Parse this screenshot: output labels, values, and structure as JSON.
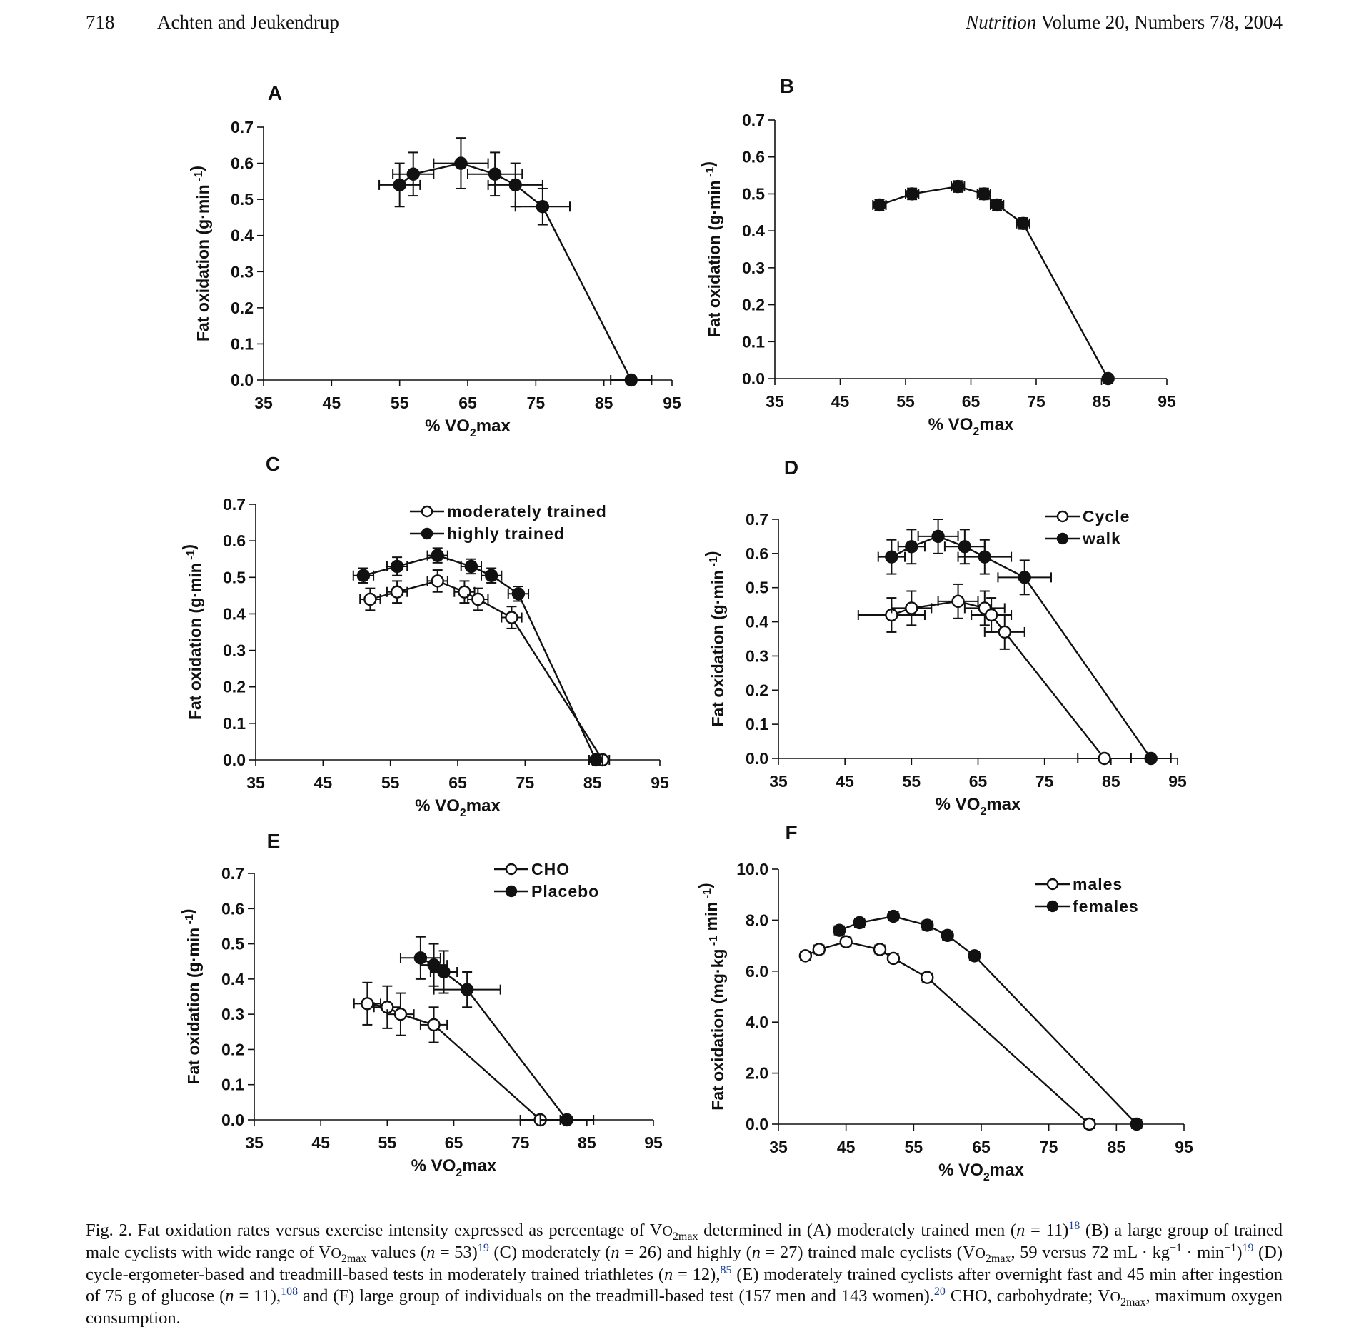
{
  "header": {
    "page_number": "718",
    "authors": "Achten and Jeukendrup",
    "journal": "Nutrition",
    "volume": "Volume 20, Numbers 7/8, 2004"
  },
  "chart_data": [
    {
      "id": "A",
      "letter": "A",
      "type": "line",
      "xlabel": "% VO2max",
      "ylabel": "Fat oxidation (g·min -1)",
      "xlim": [
        35,
        95
      ],
      "ylim": [
        0,
        0.7
      ],
      "xticks": [
        35,
        45,
        55,
        65,
        75,
        85,
        95
      ],
      "yticks": [
        "0.0",
        "0.1",
        "0.2",
        "0.3",
        "0.4",
        "0.5",
        "0.6",
        "0.7"
      ],
      "series": [
        {
          "filled": true,
          "points": [
            {
              "x": 55,
              "y": 0.54,
              "xe": 3,
              "ye": 0.06
            },
            {
              "x": 57,
              "y": 0.57,
              "xe": 3,
              "ye": 0.06
            },
            {
              "x": 64,
              "y": 0.6,
              "xe": 4,
              "ye": 0.07
            },
            {
              "x": 69,
              "y": 0.57,
              "xe": 4,
              "ye": 0.06
            },
            {
              "x": 72,
              "y": 0.54,
              "xe": 4,
              "ye": 0.06
            },
            {
              "x": 76,
              "y": 0.48,
              "xe": 4,
              "ye": 0.05
            },
            {
              "x": 89,
              "y": 0.0,
              "xe": 3,
              "ye": 0
            }
          ]
        }
      ]
    },
    {
      "id": "B",
      "letter": "B",
      "type": "line",
      "xlabel": "% VO2max",
      "ylabel": "Fat oxidation (g·min -1)",
      "xlim": [
        35,
        95
      ],
      "ylim": [
        0,
        0.7
      ],
      "xticks": [
        35,
        45,
        55,
        65,
        75,
        85,
        95
      ],
      "yticks": [
        "0.0",
        "0.1",
        "0.2",
        "0.3",
        "0.4",
        "0.5",
        "0.6",
        "0.7"
      ],
      "series": [
        {
          "filled": true,
          "points": [
            {
              "x": 51,
              "y": 0.47,
              "xe": 1,
              "ye": 0.015
            },
            {
              "x": 56,
              "y": 0.5,
              "xe": 1,
              "ye": 0.015
            },
            {
              "x": 63,
              "y": 0.52,
              "xe": 1,
              "ye": 0.015
            },
            {
              "x": 67,
              "y": 0.5,
              "xe": 1,
              "ye": 0.015
            },
            {
              "x": 69,
              "y": 0.47,
              "xe": 1,
              "ye": 0.015
            },
            {
              "x": 73,
              "y": 0.42,
              "xe": 1,
              "ye": 0.015
            },
            {
              "x": 86,
              "y": 0.0,
              "xe": 0.7,
              "ye": 0
            }
          ]
        }
      ]
    },
    {
      "id": "C",
      "letter": "C",
      "type": "line",
      "xlabel": "% VO2max",
      "ylabel": "Fat oxidation (g·min -1)",
      "xlim": [
        35,
        95
      ],
      "ylim": [
        0,
        0.7
      ],
      "xticks": [
        35,
        45,
        55,
        65,
        75,
        85,
        95
      ],
      "yticks": [
        "0.0",
        "0.1",
        "0.2",
        "0.3",
        "0.4",
        "0.5",
        "0.6",
        "0.7"
      ],
      "legend": "top-right",
      "series": [
        {
          "name": "moderately trained",
          "filled": false,
          "points": [
            {
              "x": 52,
              "y": 0.44,
              "xe": 1.5,
              "ye": 0.03
            },
            {
              "x": 56,
              "y": 0.46,
              "xe": 1.5,
              "ye": 0.03
            },
            {
              "x": 62,
              "y": 0.49,
              "xe": 1.5,
              "ye": 0.03
            },
            {
              "x": 66,
              "y": 0.46,
              "xe": 1.5,
              "ye": 0.03
            },
            {
              "x": 68,
              "y": 0.44,
              "xe": 1.5,
              "ye": 0.03
            },
            {
              "x": 73,
              "y": 0.39,
              "xe": 1.5,
              "ye": 0.03
            },
            {
              "x": 86.5,
              "y": 0.0,
              "xe": 1,
              "ye": 0
            }
          ]
        },
        {
          "name": "highly trained",
          "filled": true,
          "points": [
            {
              "x": 51,
              "y": 0.505,
              "xe": 1.5,
              "ye": 0.02
            },
            {
              "x": 56,
              "y": 0.53,
              "xe": 1.5,
              "ye": 0.025
            },
            {
              "x": 62,
              "y": 0.56,
              "xe": 1.5,
              "ye": 0.02
            },
            {
              "x": 67,
              "y": 0.53,
              "xe": 1.5,
              "ye": 0.02
            },
            {
              "x": 70,
              "y": 0.505,
              "xe": 1.5,
              "ye": 0.02
            },
            {
              "x": 74,
              "y": 0.455,
              "xe": 1.5,
              "ye": 0.02
            },
            {
              "x": 85.5,
              "y": 0.0,
              "xe": 1,
              "ye": 0
            }
          ]
        }
      ]
    },
    {
      "id": "D",
      "letter": "D",
      "type": "line",
      "xlabel": "% VO2max",
      "ylabel": "Fat oxidation (g·min -1)",
      "xlim": [
        35,
        95
      ],
      "ylim": [
        0,
        0.7
      ],
      "xticks": [
        35,
        45,
        55,
        65,
        75,
        85,
        95
      ],
      "yticks": [
        "0.0",
        "0.1",
        "0.2",
        "0.3",
        "0.4",
        "0.5",
        "0.6",
        "0.7"
      ],
      "legend": "top-right",
      "series": [
        {
          "name": "Cycle",
          "filled": false,
          "points": [
            {
              "x": 52,
              "y": 0.42,
              "xe": 5,
              "ye": 0.05
            },
            {
              "x": 55,
              "y": 0.44,
              "xe": 3,
              "ye": 0.05
            },
            {
              "x": 62,
              "y": 0.46,
              "xe": 3,
              "ye": 0.05
            },
            {
              "x": 66,
              "y": 0.44,
              "xe": 3,
              "ye": 0.05
            },
            {
              "x": 67,
              "y": 0.42,
              "xe": 3,
              "ye": 0.05
            },
            {
              "x": 69,
              "y": 0.37,
              "xe": 3,
              "ye": 0.05
            },
            {
              "x": 84,
              "y": 0.0,
              "xe": 4,
              "ye": 0
            }
          ]
        },
        {
          "name": "walk",
          "filled": true,
          "points": [
            {
              "x": 52,
              "y": 0.59,
              "xe": 2,
              "ye": 0.05
            },
            {
              "x": 55,
              "y": 0.62,
              "xe": 2,
              "ye": 0.05
            },
            {
              "x": 59,
              "y": 0.65,
              "xe": 3,
              "ye": 0.05
            },
            {
              "x": 63,
              "y": 0.62,
              "xe": 3,
              "ye": 0.05
            },
            {
              "x": 66,
              "y": 0.59,
              "xe": 4,
              "ye": 0.05
            },
            {
              "x": 72,
              "y": 0.53,
              "xe": 4,
              "ye": 0.05
            },
            {
              "x": 91,
              "y": 0.0,
              "xe": 3,
              "ye": 0
            }
          ]
        }
      ]
    },
    {
      "id": "E",
      "letter": "E",
      "type": "line",
      "xlabel": "% VO2max",
      "ylabel": "Fat oxidation (g·min -1)",
      "xlim": [
        35,
        95
      ],
      "ylim": [
        0,
        0.7
      ],
      "xticks": [
        35,
        45,
        55,
        65,
        75,
        85,
        95
      ],
      "yticks": [
        "0.0",
        "0.1",
        "0.2",
        "0.3",
        "0.4",
        "0.5",
        "0.6",
        "0.7"
      ],
      "legend": "top-right",
      "series": [
        {
          "name": "CHO",
          "filled": false,
          "points": [
            {
              "x": 52,
              "y": 0.33,
              "xe": 2,
              "ye": 0.06
            },
            {
              "x": 55,
              "y": 0.32,
              "xe": 2,
              "ye": 0.06
            },
            {
              "x": 57,
              "y": 0.3,
              "xe": 2,
              "ye": 0.06
            },
            {
              "x": 62,
              "y": 0.27,
              "xe": 2,
              "ye": 0.05
            },
            {
              "x": 78,
              "y": 0.0,
              "xe": 3,
              "ye": 0
            }
          ]
        },
        {
          "name": "Placebo",
          "filled": true,
          "points": [
            {
              "x": 60,
              "y": 0.46,
              "xe": 3,
              "ye": 0.06
            },
            {
              "x": 62,
              "y": 0.44,
              "xe": 2,
              "ye": 0.06
            },
            {
              "x": 63.5,
              "y": 0.42,
              "xe": 2,
              "ye": 0.06
            },
            {
              "x": 67,
              "y": 0.37,
              "xe": 5,
              "ye": 0.05
            },
            {
              "x": 82,
              "y": 0.0,
              "xe": 4,
              "ye": 0
            }
          ]
        }
      ]
    },
    {
      "id": "F",
      "letter": "F",
      "type": "line",
      "xlabel": "% VO2max",
      "ylabel": "Fat oxidation (mg·kg -1 min -1)",
      "xlim": [
        35,
        95
      ],
      "ylim": [
        0,
        10
      ],
      "xticks": [
        35,
        45,
        55,
        65,
        75,
        85,
        95
      ],
      "yticks": [
        "0.0",
        "2.0",
        "4.0",
        "6.0",
        "8.0",
        "10.0"
      ],
      "legend": "top-right",
      "series": [
        {
          "name": "males",
          "filled": false,
          "points": [
            {
              "x": 39,
              "y": 6.6,
              "xe": 0.7,
              "ye": 0.15
            },
            {
              "x": 41,
              "y": 6.85,
              "xe": 0.7,
              "ye": 0.15
            },
            {
              "x": 45,
              "y": 7.15,
              "xe": 0.7,
              "ye": 0.15
            },
            {
              "x": 50,
              "y": 6.85,
              "xe": 0.7,
              "ye": 0.15
            },
            {
              "x": 52,
              "y": 6.5,
              "xe": 0.7,
              "ye": 0.15
            },
            {
              "x": 57,
              "y": 5.75,
              "xe": 0.7,
              "ye": 0.15
            },
            {
              "x": 81,
              "y": 0.0,
              "xe": 0.7,
              "ye": 0
            }
          ]
        },
        {
          "name": "females",
          "filled": true,
          "points": [
            {
              "x": 44,
              "y": 7.6,
              "xe": 0.7,
              "ye": 0.15
            },
            {
              "x": 47,
              "y": 7.9,
              "xe": 0.7,
              "ye": 0.15
            },
            {
              "x": 52,
              "y": 8.15,
              "xe": 0.7,
              "ye": 0.15
            },
            {
              "x": 57,
              "y": 7.8,
              "xe": 0.7,
              "ye": 0.15
            },
            {
              "x": 60,
              "y": 7.4,
              "xe": 0.7,
              "ye": 0.15
            },
            {
              "x": 64,
              "y": 6.6,
              "xe": 0.7,
              "ye": 0.15
            },
            {
              "x": 88,
              "y": 0.0,
              "xe": 0.7,
              "ye": 0
            }
          ]
        }
      ]
    }
  ],
  "caption": {
    "c1": "Fig. 2. Fat oxidation rates versus exercise intensity expressed as percentage of V",
    "c2": "O",
    "c3": "2max",
    "c4": " determined in (A) moderately trained men (",
    "c5": "n",
    "c6": " = 11)",
    "c7": "18",
    "c8": " (B) a large group of trained male cyclists with wide range of V",
    "c9": "O",
    "c10": "2max",
    "c11": " values (",
    "c12": "n",
    "c13": " = 53)",
    "c14": "19",
    "c15": " (C) moderately (",
    "c16": "n",
    "c17": " = 26) and highly (",
    "c18": "n",
    "c19": " = 27) trained male cyclists (V",
    "c20": "O",
    "c21": "2max",
    "c22": ", 59 versus 72 mL · kg",
    "c23": "−1",
    "c24": " · min",
    "c25": "−1",
    "c26": ")",
    "c27": "19",
    "c28": " (D) cycle-ergometer-based and treadmill-based tests in moderately trained triathletes (",
    "c29": "n",
    "c30": " = 12),",
    "c31": "85",
    "c32": " (E) moderately trained cyclists after overnight fast and 45 min after ingestion of 75 g of glucose (",
    "c33": "n",
    "c34": " = 11),",
    "c35": "108",
    "c36": " and (F) large group of individuals on the treadmill-based test (157 men and 143 women).",
    "c37": "20",
    "c38": " CHO, carbohydrate; V",
    "c39": "O",
    "c40": "2max",
    "c41": ", maximum oxygen consumption."
  }
}
